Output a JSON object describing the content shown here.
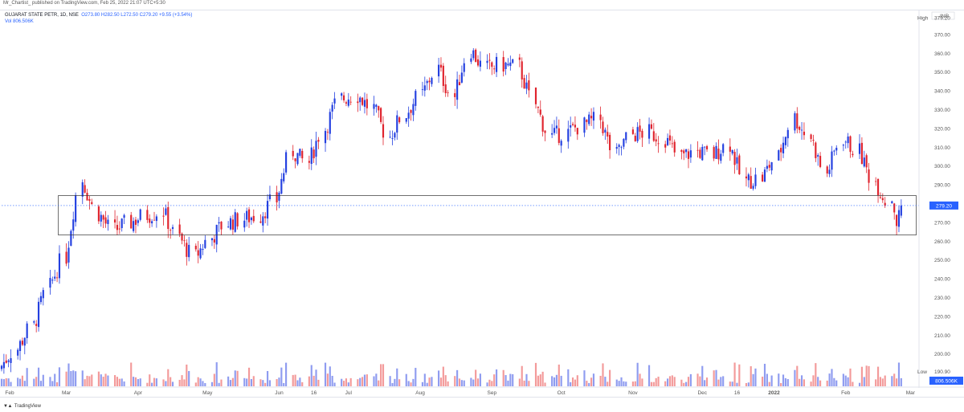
{
  "header": {
    "publisher_line": "Mr_Chartist_ published on TradingView.com, Feb 25, 2022 21:07 UTC+5:30",
    "symbol_line": "GUJARAT STATE PETR, 1D, NSE",
    "ohlc_line": "O273.80 H282.50 L272.50 C279.20 +9.55 (+3.54%)",
    "volume_line": "Vol  806.506K"
  },
  "footer": {
    "brand": "TradingView"
  },
  "colors": {
    "up": "#2440e0",
    "down": "#e0242e",
    "vol_up": "#8f9cf0",
    "vol_down": "#f39a9a",
    "box": "#333333",
    "last_price": "#2962ff",
    "grid": "#e0e3eb"
  },
  "chart_data": {
    "type": "candlestick",
    "title": "GUJARAT STATE PETR, 1D, NSE",
    "currency": "INR",
    "yaxis": {
      "label": "INR",
      "range": [
        183,
        383
      ],
      "ticks": [
        200,
        210,
        220,
        230,
        240,
        250,
        260,
        270,
        280,
        290,
        300,
        310,
        320,
        330,
        340,
        350,
        360,
        370
      ]
    },
    "xaxis": {
      "labels": [
        "Feb",
        "Mar",
        "Apr",
        "May",
        "Jun",
        "16",
        "Jul",
        "Aug",
        "Sep",
        "Oct",
        "Nov",
        "Dec",
        "16",
        "2022",
        "Feb",
        "Mar"
      ],
      "range": [
        "2021-02-01",
        "2022-03-04"
      ]
    },
    "last_price": {
      "label": "279.20",
      "value": 279.2
    },
    "high_marker": {
      "label": "High",
      "value": "379.20"
    },
    "low_marker": {
      "label": "Low",
      "value": "190.90"
    },
    "last_volume": {
      "label": "806.506K"
    },
    "annotation_box": {
      "date_from": "2021-03-01",
      "date_to": "2022-02-28",
      "price_top": 284.5,
      "price_bottom": 263.5
    },
    "weekly_closes": [
      {
        "date": "2021-02-01",
        "close": 194
      },
      {
        "date": "2021-02-08",
        "close": 203
      },
      {
        "date": "2021-02-15",
        "close": 215
      },
      {
        "date": "2021-02-22",
        "close": 236
      },
      {
        "date": "2021-03-01",
        "close": 252
      },
      {
        "date": "2021-03-08",
        "close": 293
      },
      {
        "date": "2021-03-15",
        "close": 275
      },
      {
        "date": "2021-03-22",
        "close": 266
      },
      {
        "date": "2021-03-29",
        "close": 270
      },
      {
        "date": "2021-04-05",
        "close": 274
      },
      {
        "date": "2021-04-12",
        "close": 276
      },
      {
        "date": "2021-04-19",
        "close": 262
      },
      {
        "date": "2021-04-26",
        "close": 252
      },
      {
        "date": "2021-05-03",
        "close": 262
      },
      {
        "date": "2021-05-10",
        "close": 270
      },
      {
        "date": "2021-05-17",
        "close": 272
      },
      {
        "date": "2021-05-24",
        "close": 274
      },
      {
        "date": "2021-05-31",
        "close": 282
      },
      {
        "date": "2021-06-07",
        "close": 308
      },
      {
        "date": "2021-06-14",
        "close": 302
      },
      {
        "date": "2021-06-21",
        "close": 320
      },
      {
        "date": "2021-06-28",
        "close": 336
      },
      {
        "date": "2021-07-05",
        "close": 338
      },
      {
        "date": "2021-07-12",
        "close": 331
      },
      {
        "date": "2021-07-19",
        "close": 316
      },
      {
        "date": "2021-07-26",
        "close": 328
      },
      {
        "date": "2021-08-02",
        "close": 338
      },
      {
        "date": "2021-08-09",
        "close": 352
      },
      {
        "date": "2021-08-16",
        "close": 337
      },
      {
        "date": "2021-08-23",
        "close": 362
      },
      {
        "date": "2021-08-30",
        "close": 352
      },
      {
        "date": "2021-09-06",
        "close": 354
      },
      {
        "date": "2021-09-13",
        "close": 353
      },
      {
        "date": "2021-09-20",
        "close": 333
      },
      {
        "date": "2021-09-27",
        "close": 316
      },
      {
        "date": "2021-10-04",
        "close": 318
      },
      {
        "date": "2021-10-11",
        "close": 322
      },
      {
        "date": "2021-10-18",
        "close": 325
      },
      {
        "date": "2021-10-25",
        "close": 306
      },
      {
        "date": "2021-11-01",
        "close": 317
      },
      {
        "date": "2021-11-08",
        "close": 318
      },
      {
        "date": "2021-11-15",
        "close": 315
      },
      {
        "date": "2021-11-22",
        "close": 305
      },
      {
        "date": "2021-11-29",
        "close": 308
      },
      {
        "date": "2021-12-06",
        "close": 306
      },
      {
        "date": "2021-12-13",
        "close": 312
      },
      {
        "date": "2021-12-20",
        "close": 292
      },
      {
        "date": "2021-12-27",
        "close": 294
      },
      {
        "date": "2022-01-03",
        "close": 305
      },
      {
        "date": "2022-01-10",
        "close": 326
      },
      {
        "date": "2022-01-17",
        "close": 316
      },
      {
        "date": "2022-01-24",
        "close": 296
      },
      {
        "date": "2022-01-31",
        "close": 315
      },
      {
        "date": "2022-02-07",
        "close": 308
      },
      {
        "date": "2022-02-14",
        "close": 292
      },
      {
        "date": "2022-02-21",
        "close": 279.2
      }
    ]
  }
}
